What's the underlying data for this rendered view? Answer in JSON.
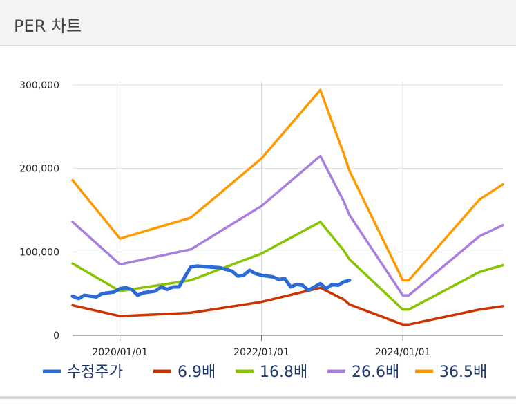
{
  "header": {
    "title": "PER 차트"
  },
  "chart_data": {
    "type": "line",
    "title": "",
    "xlabel": "",
    "ylabel": "",
    "ylim": [
      0,
      300000
    ],
    "yticks": [
      0,
      100000,
      200000,
      300000
    ],
    "ytick_labels": [
      "0",
      "100,000",
      "200,000",
      "300,000"
    ],
    "xlim": [
      "2019-05-01",
      "2025-06-01"
    ],
    "xticks": [
      "2020-01-01",
      "2022-01-01",
      "2024-01-01"
    ],
    "xtick_labels": [
      "2020/01/01",
      "2022/01/01",
      "2024/01/01"
    ],
    "grid": true,
    "legend_position": "bottom",
    "series": [
      {
        "name": "수정주가",
        "color": "#2a6bd6",
        "points": [
          [
            "2019-05-01",
            47000
          ],
          [
            "2019-06-01",
            44000
          ],
          [
            "2019-07-01",
            48000
          ],
          [
            "2019-09-01",
            46000
          ],
          [
            "2019-10-01",
            50000
          ],
          [
            "2019-12-01",
            52000
          ],
          [
            "2020-01-01",
            56000
          ],
          [
            "2020-02-01",
            57000
          ],
          [
            "2020-03-01",
            55000
          ],
          [
            "2020-04-01",
            48000
          ],
          [
            "2020-05-01",
            51000
          ],
          [
            "2020-07-01",
            53000
          ],
          [
            "2020-08-01",
            58000
          ],
          [
            "2020-09-01",
            55000
          ],
          [
            "2020-10-01",
            58000
          ],
          [
            "2020-11-01",
            58000
          ],
          [
            "2020-12-01",
            70000
          ],
          [
            "2021-01-01",
            82000
          ],
          [
            "2021-02-01",
            83000
          ],
          [
            "2021-04-01",
            82000
          ],
          [
            "2021-06-01",
            81000
          ],
          [
            "2021-08-01",
            77000
          ],
          [
            "2021-09-01",
            71000
          ],
          [
            "2021-10-01",
            72000
          ],
          [
            "2021-11-01",
            78000
          ],
          [
            "2021-12-01",
            74000
          ],
          [
            "2022-01-01",
            72000
          ],
          [
            "2022-03-01",
            70000
          ],
          [
            "2022-04-01",
            67000
          ],
          [
            "2022-05-01",
            68000
          ],
          [
            "2022-06-01",
            58000
          ],
          [
            "2022-07-01",
            61000
          ],
          [
            "2022-08-01",
            60000
          ],
          [
            "2022-09-01",
            54000
          ],
          [
            "2022-10-01",
            58000
          ],
          [
            "2022-11-01",
            62000
          ],
          [
            "2022-12-01",
            56000
          ],
          [
            "2023-01-01",
            61000
          ],
          [
            "2023-02-01",
            60000
          ],
          [
            "2023-03-01",
            64000
          ],
          [
            "2023-04-01",
            66000
          ]
        ]
      },
      {
        "name": "6.9배",
        "color": "#cc3300",
        "points": [
          [
            "2019-05-01",
            36000
          ],
          [
            "2020-01-01",
            23000
          ],
          [
            "2021-01-01",
            27000
          ],
          [
            "2022-01-01",
            40000
          ],
          [
            "2022-11-01",
            57000
          ],
          [
            "2023-03-01",
            43000
          ],
          [
            "2023-04-01",
            37000
          ],
          [
            "2024-01-01",
            13000
          ],
          [
            "2024-02-01",
            13000
          ],
          [
            "2025-02-01",
            31000
          ],
          [
            "2025-06-01",
            35000
          ]
        ]
      },
      {
        "name": "16.8배",
        "color": "#88c400",
        "points": [
          [
            "2019-05-01",
            86000
          ],
          [
            "2020-01-01",
            53000
          ],
          [
            "2021-01-01",
            66000
          ],
          [
            "2022-01-01",
            98000
          ],
          [
            "2022-11-01",
            136000
          ],
          [
            "2023-03-01",
            102000
          ],
          [
            "2023-04-01",
            91000
          ],
          [
            "2024-01-01",
            31000
          ],
          [
            "2024-02-01",
            31000
          ],
          [
            "2025-02-01",
            76000
          ],
          [
            "2025-06-01",
            84000
          ]
        ]
      },
      {
        "name": "26.6배",
        "color": "#a87fe0",
        "points": [
          [
            "2019-05-01",
            136000
          ],
          [
            "2020-01-01",
            85000
          ],
          [
            "2021-01-01",
            103000
          ],
          [
            "2022-01-01",
            155000
          ],
          [
            "2022-11-01",
            215000
          ],
          [
            "2023-03-01",
            161000
          ],
          [
            "2023-04-01",
            144000
          ],
          [
            "2024-01-01",
            48000
          ],
          [
            "2024-02-01",
            48000
          ],
          [
            "2025-02-01",
            119000
          ],
          [
            "2025-06-01",
            132000
          ]
        ]
      },
      {
        "name": "36.5배",
        "color": "#ff9900",
        "points": [
          [
            "2019-05-01",
            186000
          ],
          [
            "2020-01-01",
            116000
          ],
          [
            "2021-01-01",
            141000
          ],
          [
            "2022-01-01",
            212000
          ],
          [
            "2022-11-01",
            294000
          ],
          [
            "2023-03-01",
            218000
          ],
          [
            "2023-04-01",
            197000
          ],
          [
            "2024-01-01",
            66000
          ],
          [
            "2024-02-01",
            66000
          ],
          [
            "2025-02-01",
            163000
          ],
          [
            "2025-06-01",
            181000
          ]
        ]
      }
    ]
  }
}
